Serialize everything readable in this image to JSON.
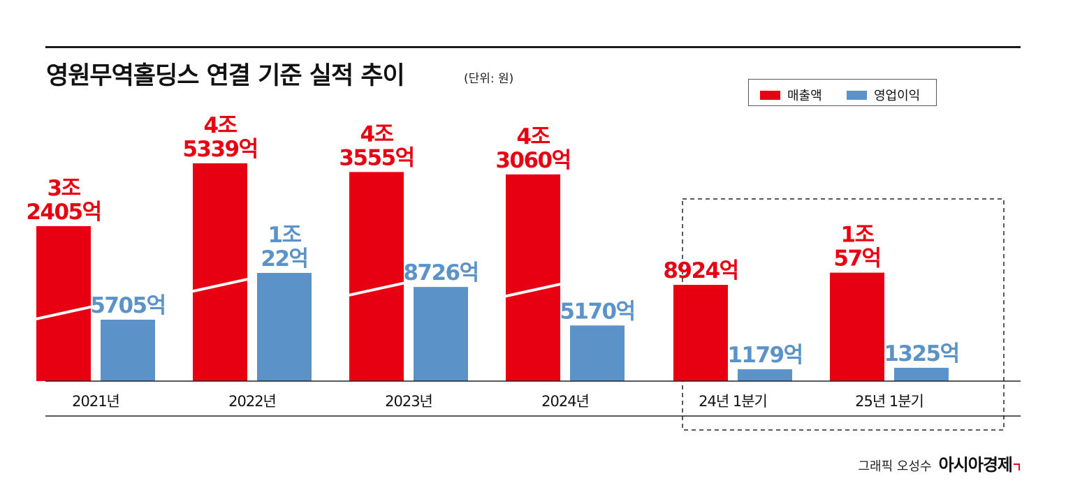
{
  "title": "영원무역홀딩스 연결 기준 실적 추이",
  "unit_note": "(단위: 원)",
  "credit": {
    "text": "그래픽 오성수",
    "brand": "아시아경제"
  },
  "colors": {
    "revenue": "#e60012",
    "operating_profit": "#5b93c9"
  },
  "chart_data": {
    "type": "bar",
    "categories": [
      "2021년",
      "2022년",
      "2023년",
      "2024년",
      "24년 1분기",
      "25년 1분기"
    ],
    "highlight_group": [
      "24년 1분기",
      "25년 1분기"
    ],
    "legend_position": "top-right",
    "series": [
      {
        "name": "매출액",
        "values": [
          32405,
          45339,
          43555,
          43060,
          8924,
          10057
        ],
        "labels": [
          [
            "3조",
            "2405억"
          ],
          [
            "4조",
            "5339억"
          ],
          [
            "4조",
            "3555억"
          ],
          [
            "4조",
            "3060억"
          ],
          [
            "8924억"
          ],
          [
            "1조",
            "57억"
          ]
        ]
      },
      {
        "name": "영업이익",
        "values": [
          5705,
          10022,
          8726,
          5170,
          1179,
          1325
        ],
        "labels": [
          [
            "5705억"
          ],
          [
            "1조",
            "22억"
          ],
          [
            "8726억"
          ],
          [
            "5170억"
          ],
          [
            "1179억"
          ],
          [
            "1325억"
          ]
        ]
      }
    ]
  }
}
